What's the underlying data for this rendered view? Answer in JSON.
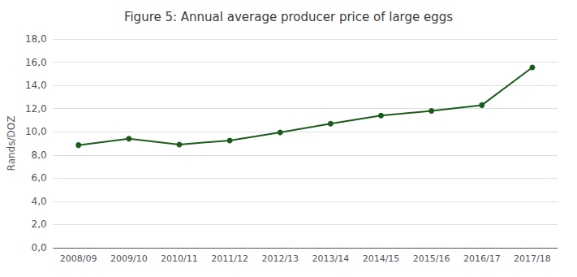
{
  "chart_data": {
    "type": "line",
    "title": "Figure 5: Annual average producer price of large eggs",
    "ylabel": "Rands/DOZ",
    "categories": [
      "2008/09",
      "2009/10",
      "2010/11",
      "2011/12",
      "2012/13",
      "2013/14",
      "2014/15",
      "2015/16",
      "2016/17",
      "2017/18"
    ],
    "values": [
      8.85,
      9.4,
      8.9,
      9.25,
      9.95,
      10.7,
      11.4,
      11.8,
      12.3,
      15.55
    ],
    "color": "#1a5c1a",
    "marker": "circle",
    "ylim": [
      0,
      18
    ],
    "yticks": [
      {
        "value": 0,
        "label": "0,0"
      },
      {
        "value": 2,
        "label": "2,0"
      },
      {
        "value": 4,
        "label": "4,0"
      },
      {
        "value": 6,
        "label": "6,0"
      },
      {
        "value": 8,
        "label": "8,0"
      },
      {
        "value": 10,
        "label": "10,0"
      },
      {
        "value": 12,
        "label": "12,0"
      },
      {
        "value": 14,
        "label": "14,0"
      },
      {
        "value": 16,
        "label": "16,0"
      },
      {
        "value": 18,
        "label": "18,0"
      }
    ],
    "grid": true
  }
}
